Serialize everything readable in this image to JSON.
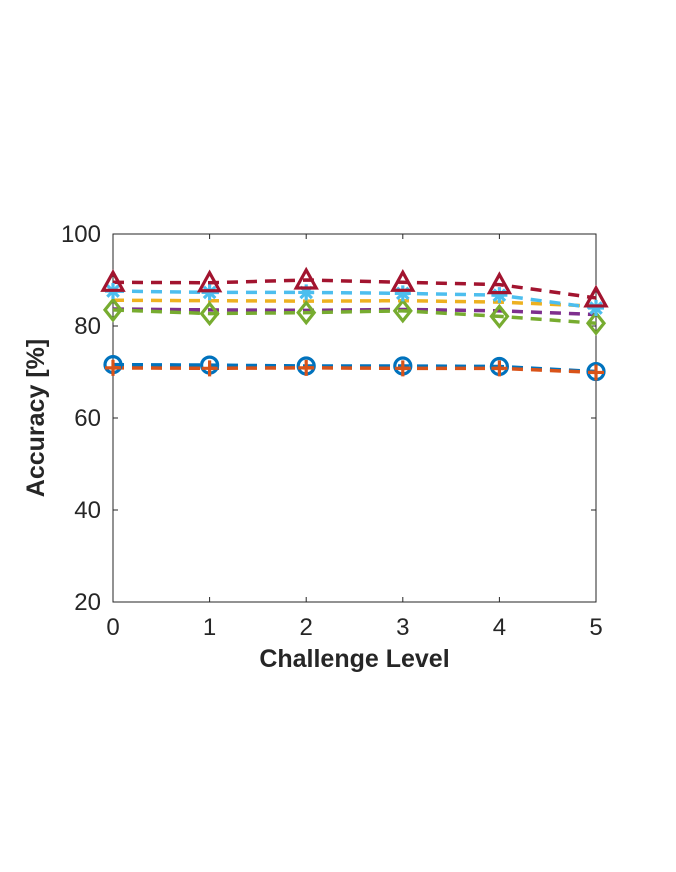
{
  "chart_data": {
    "type": "line",
    "title": "",
    "xlabel": "Challenge Level",
    "ylabel": "Accuracy [%]",
    "x": [
      0,
      1,
      2,
      3,
      4,
      5
    ],
    "xlim": [
      0,
      5
    ],
    "ylim": [
      20,
      100
    ],
    "xticks": [
      0,
      1,
      2,
      3,
      4,
      5
    ],
    "yticks": [
      20,
      40,
      60,
      80,
      100
    ],
    "grid": false,
    "legend": "none",
    "series": [
      {
        "color": "#0072bd",
        "marker": "circle",
        "line_style": "dashed",
        "values": [
          71.6,
          71.5,
          71.3,
          71.3,
          71.2,
          70.1
        ]
      },
      {
        "color": "#d95319",
        "marker": "plus",
        "line_style": "dashed",
        "values": [
          70.9,
          70.8,
          70.9,
          70.8,
          70.8,
          69.9
        ]
      },
      {
        "color": "#edb120",
        "marker": "none",
        "line_style": "dashed",
        "values": [
          85.6,
          85.5,
          85.4,
          85.5,
          85.2,
          84.3
        ]
      },
      {
        "color": "#7e2f8e",
        "marker": "none",
        "line_style": "dashed",
        "values": [
          83.7,
          83.5,
          83.4,
          83.6,
          83.3,
          82.5
        ]
      },
      {
        "color": "#77ac30",
        "marker": "diamond",
        "line_style": "dashed",
        "values": [
          83.5,
          82.7,
          82.9,
          83.3,
          82.1,
          80.6
        ]
      },
      {
        "color": "#4dbeee",
        "marker": "asterisk",
        "line_style": "dashed",
        "values": [
          87.6,
          87.3,
          87.3,
          87.1,
          86.7,
          83.9
        ]
      },
      {
        "color": "#a2142f",
        "marker": "triangle",
        "line_style": "dashed",
        "values": [
          89.5,
          89.4,
          90.0,
          89.5,
          89.0,
          86.1
        ]
      }
    ]
  }
}
